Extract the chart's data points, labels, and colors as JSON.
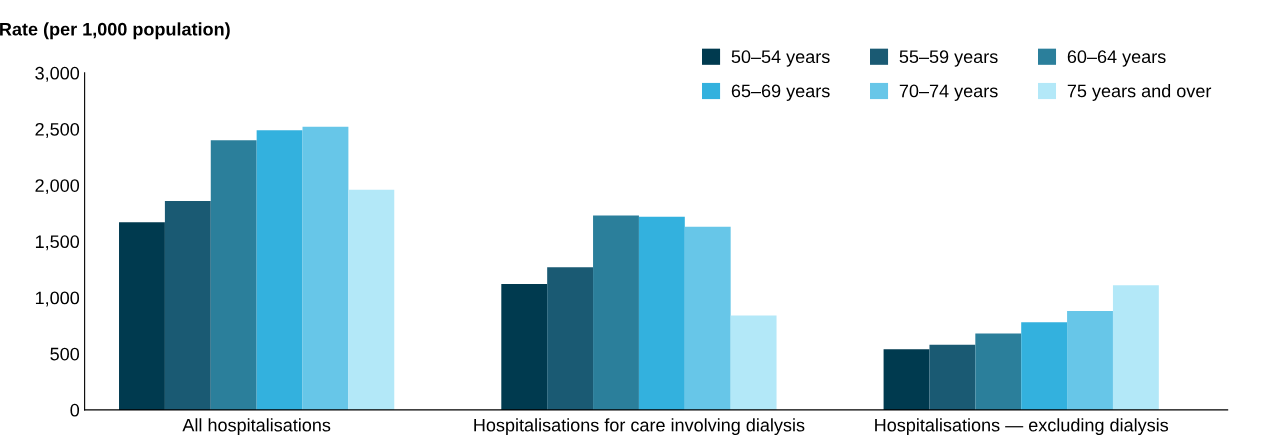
{
  "chart_data": {
    "type": "bar",
    "ylabel": "Rate (per 1,000 population)",
    "categories": [
      "All hospitalisations",
      "Hospitalisations for care involving dialysis",
      "Hospitalisations — excluding dialysis"
    ],
    "series": [
      {
        "name": "50–54 years",
        "color": "#003a4f",
        "values": [
          1670,
          1120,
          540
        ]
      },
      {
        "name": "55–59 years",
        "color": "#1a5a73",
        "values": [
          1860,
          1270,
          580
        ]
      },
      {
        "name": "60–64 years",
        "color": "#2b7f9b",
        "values": [
          2400,
          1730,
          680
        ]
      },
      {
        "name": "65–69 years",
        "color": "#33b1de",
        "values": [
          2490,
          1720,
          780
        ]
      },
      {
        "name": "70–74 years",
        "color": "#67c6e8",
        "values": [
          2520,
          1630,
          880
        ]
      },
      {
        "name": "75 years and over",
        "color": "#b3e8f8",
        "values": [
          1960,
          840,
          1110
        ]
      }
    ],
    "ylim": [
      0,
      3000
    ],
    "yticks": [
      {
        "value": 0,
        "label": "0"
      },
      {
        "value": 500,
        "label": "500"
      },
      {
        "value": 1000,
        "label": "1,000"
      },
      {
        "value": 1500,
        "label": "1,500"
      },
      {
        "value": 2000,
        "label": "2,000"
      },
      {
        "value": 2500,
        "label": "2,500"
      },
      {
        "value": 3000,
        "label": "3,000"
      }
    ],
    "grid": false,
    "legend": "top right"
  }
}
